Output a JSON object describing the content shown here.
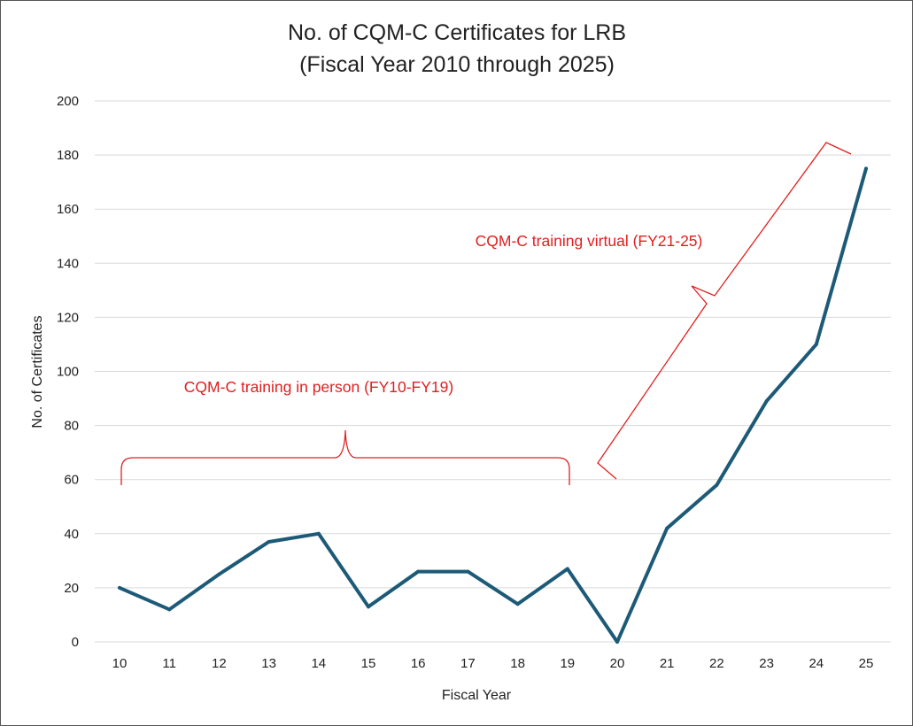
{
  "chart_data": {
    "type": "line",
    "title": [
      "No. of CQM-C Certificates for LRB",
      "(Fiscal Year 2010 through 2025)"
    ],
    "xlabel": "Fiscal Year",
    "ylabel": "No. of Certificates",
    "ylim": [
      0,
      200
    ],
    "y_ticks": [
      0,
      20,
      40,
      60,
      80,
      100,
      120,
      140,
      160,
      180,
      200
    ],
    "grid": true,
    "categories": [
      "10",
      "11",
      "12",
      "13",
      "14",
      "15",
      "16",
      "17",
      "18",
      "19",
      "20",
      "21",
      "22",
      "23",
      "24",
      "25"
    ],
    "series": [
      {
        "name": "No. of Certificates",
        "values": [
          20,
          12,
          25,
          37,
          40,
          13,
          26,
          26,
          14,
          27,
          0,
          42,
          58,
          89,
          110,
          175
        ]
      }
    ],
    "colors": {
      "line": "#1d5a78",
      "annotation": "#e02020",
      "grid": "#d9d9d9"
    },
    "annotations": [
      {
        "text": "CQM-C training in person (FY10-FY19)",
        "range": [
          "10",
          "19"
        ]
      },
      {
        "text": "CQM-C training virtual (FY21-25)",
        "range": [
          "20",
          "24.5"
        ]
      }
    ]
  }
}
